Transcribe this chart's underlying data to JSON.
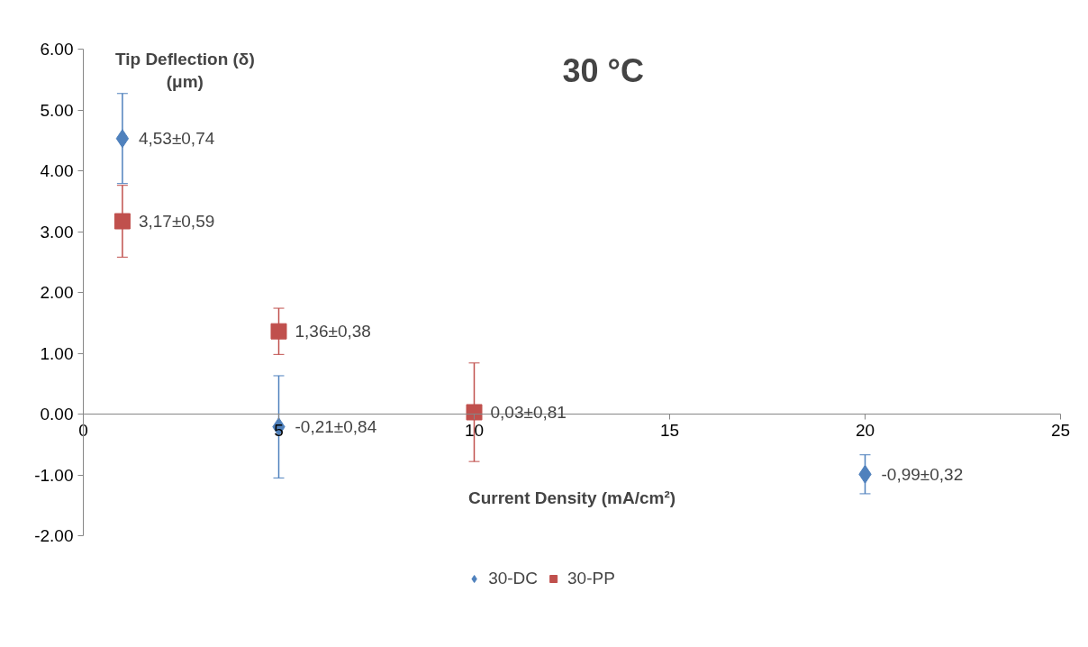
{
  "chart_data": {
    "type": "scatter",
    "title": "30 °C",
    "xlabel": "Current Density (mA/cm²)",
    "ylabel": "Tip Deflection (δ)\n(μm)",
    "xlim": [
      0,
      25
    ],
    "xticks": [
      0,
      5,
      10,
      15,
      20,
      25
    ],
    "ylim": [
      -2,
      6
    ],
    "yticks": [
      {
        "value": -2,
        "label": "-2.00"
      },
      {
        "value": -1,
        "label": "-1.00"
      },
      {
        "value": 0,
        "label": "0.00"
      },
      {
        "value": 1,
        "label": "1.00"
      },
      {
        "value": 2,
        "label": "2.00"
      },
      {
        "value": 3,
        "label": "3.00"
      },
      {
        "value": 4,
        "label": "4.00"
      },
      {
        "value": 5,
        "label": "5.00"
      },
      {
        "value": 6,
        "label": "6.00"
      }
    ],
    "grid": false,
    "legend": "bottom",
    "series": [
      {
        "name": "30-DC",
        "color": "#4f81bd",
        "marker": "diamond",
        "x": [
          1,
          5,
          20
        ],
        "values": [
          4.53,
          -0.21,
          -0.99
        ],
        "errors": [
          0.74,
          0.84,
          0.32
        ],
        "value_labels": [
          "4,53±0,74",
          "-0,21±0,84",
          "-0,99±0,32"
        ]
      },
      {
        "name": "30-PP",
        "color": "#c0504d",
        "marker": "square",
        "x": [
          1,
          5,
          10
        ],
        "values": [
          3.17,
          1.36,
          0.03
        ],
        "errors": [
          0.59,
          0.38,
          0.81
        ],
        "value_labels": [
          "3,17±0,59",
          "1,36±0,38",
          "0,03±0,81"
        ]
      }
    ]
  }
}
